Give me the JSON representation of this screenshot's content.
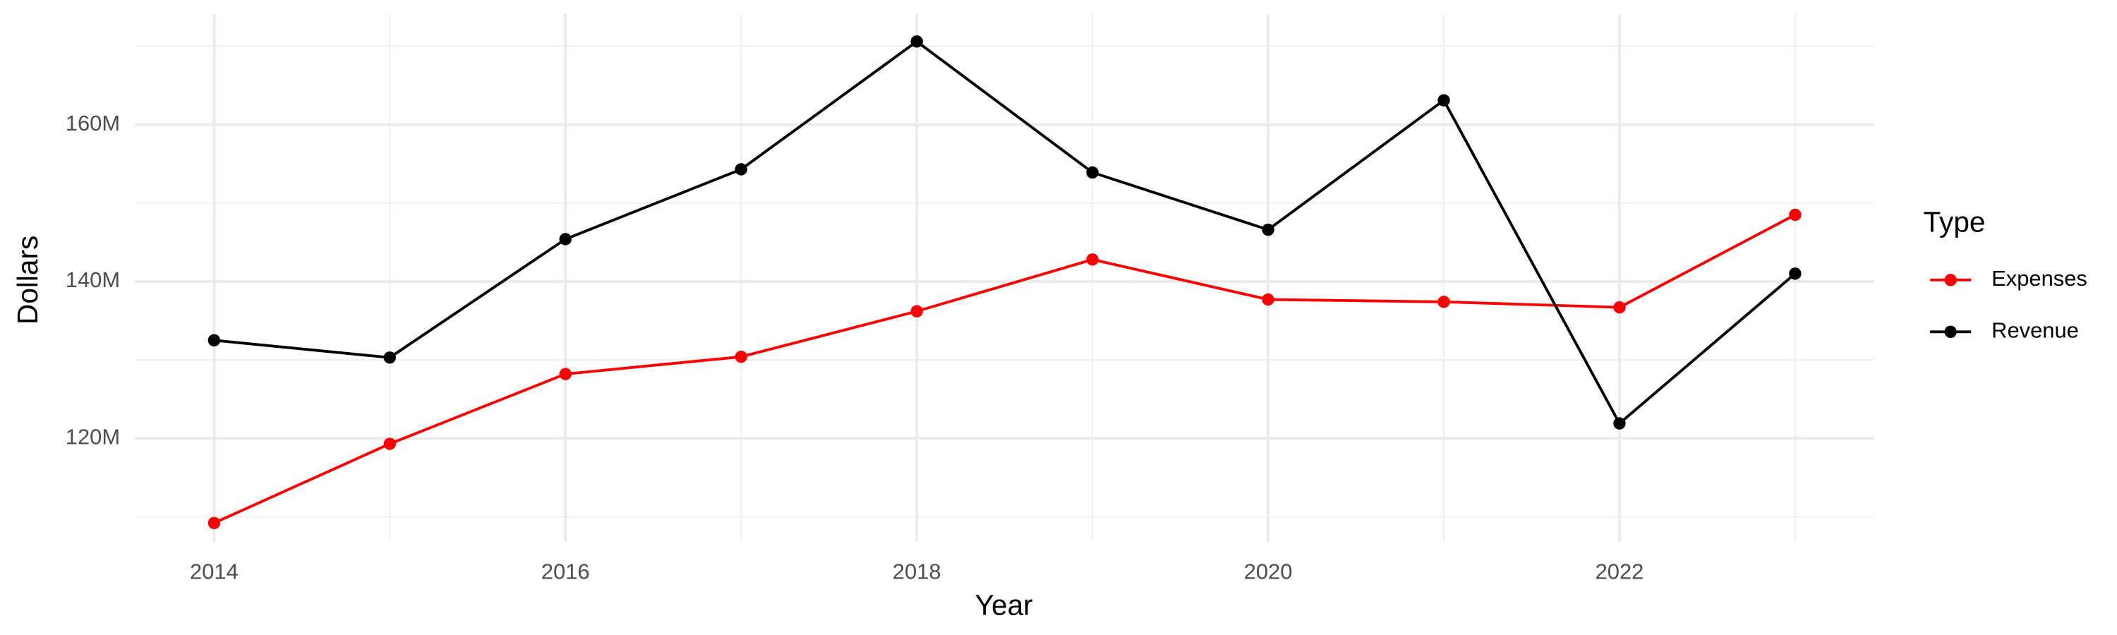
{
  "chart_data": {
    "type": "line",
    "x_label": "Year",
    "y_label": "Dollars",
    "legend_title": "Type",
    "legend": "right",
    "grid": true,
    "x": [
      2014,
      2015,
      2016,
      2017,
      2018,
      2019,
      2020,
      2021,
      2022,
      2023
    ],
    "series": [
      {
        "name": "Expenses",
        "color": "#ff0000",
        "values": [
          109200000,
          119300000,
          128200000,
          130400000,
          136200000,
          142800000,
          137700000,
          137400000,
          136700000,
          148500000
        ]
      },
      {
        "name": "Revenue",
        "color": "#000000",
        "values": [
          132500000,
          130300000,
          145400000,
          154300000,
          170600000,
          153900000,
          146600000,
          163100000,
          121900000,
          141000000
        ]
      }
    ],
    "xlim": [
      2013.55,
      2023.45
    ],
    "xticks": [
      2014,
      2016,
      2018,
      2020,
      2022
    ],
    "x_minor_ticks": [
      2015,
      2017,
      2019,
      2021,
      2023
    ],
    "ylim": [
      106800000,
      174100000
    ],
    "yticks": [
      {
        "value": 120000000,
        "label": "120M"
      },
      {
        "value": 140000000,
        "label": "140M"
      },
      {
        "value": 160000000,
        "label": "160M"
      }
    ],
    "y_minor_ticks": [
      110000000,
      130000000,
      150000000,
      170000000
    ]
  }
}
